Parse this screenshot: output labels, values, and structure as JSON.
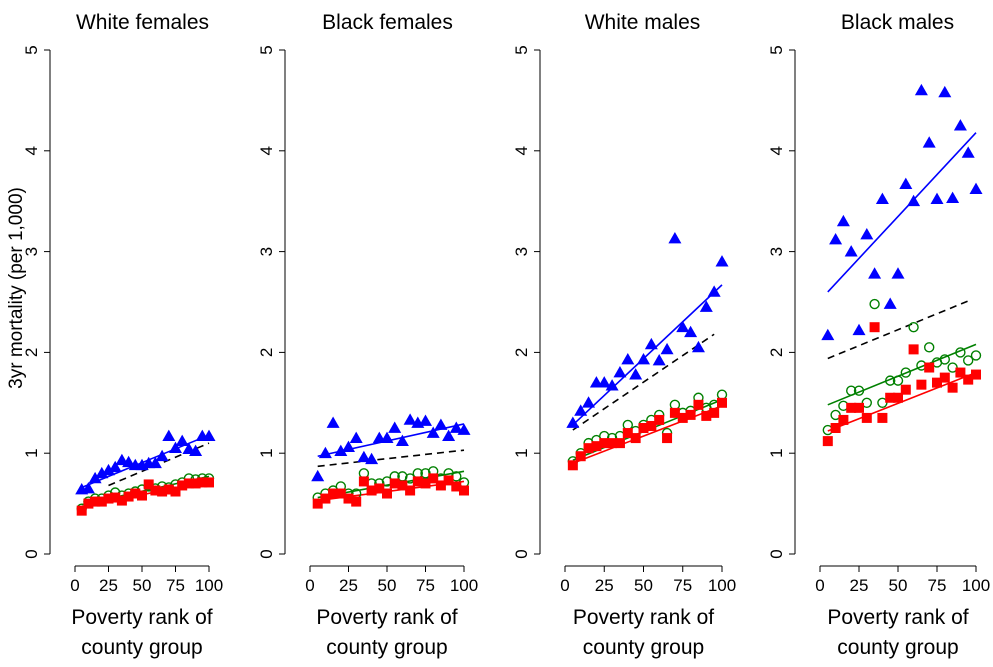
{
  "figure": {
    "ylabel": "3yr mortality (per 1,000)",
    "xlabel_line1": "Poverty rank of",
    "xlabel_line2": "county group"
  },
  "colors": {
    "blue": "#0000ff",
    "green": "#008000",
    "red": "#ff0000",
    "black": "#000000"
  },
  "chart_data": [
    {
      "type": "scatter",
      "title": "White females",
      "xlim": [
        0,
        100
      ],
      "ylim": [
        0,
        5
      ],
      "xticks": [
        0,
        25,
        50,
        75,
        100
      ],
      "yticks": [
        0,
        1,
        2,
        3,
        4,
        5
      ],
      "series": [
        {
          "marker": "triangle",
          "color": "blue",
          "x": [
            5,
            10,
            15,
            20,
            25,
            30,
            35,
            40,
            45,
            50,
            55,
            60,
            65,
            70,
            75,
            80,
            85,
            90,
            95,
            100
          ],
          "y": [
            0.64,
            0.65,
            0.75,
            0.8,
            0.83,
            0.86,
            0.93,
            0.91,
            0.88,
            0.88,
            0.9,
            0.9,
            0.97,
            1.17,
            1.05,
            1.12,
            1.04,
            1.02,
            1.17,
            1.17
          ]
        },
        {
          "marker": "hollow-circle",
          "color": "green",
          "x": [
            5,
            10,
            15,
            20,
            25,
            30,
            35,
            40,
            45,
            50,
            55,
            60,
            65,
            70,
            75,
            80,
            85,
            90,
            95,
            100
          ],
          "y": [
            0.45,
            0.52,
            0.55,
            0.55,
            0.58,
            0.61,
            0.58,
            0.6,
            0.62,
            0.64,
            0.67,
            0.65,
            0.67,
            0.66,
            0.69,
            0.71,
            0.75,
            0.74,
            0.75,
            0.75
          ]
        },
        {
          "marker": "filled-square",
          "color": "red",
          "x": [
            5,
            10,
            15,
            20,
            25,
            30,
            35,
            40,
            45,
            50,
            55,
            60,
            65,
            70,
            75,
            80,
            85,
            90,
            95,
            100
          ],
          "y": [
            0.43,
            0.5,
            0.52,
            0.52,
            0.55,
            0.56,
            0.53,
            0.57,
            0.6,
            0.58,
            0.69,
            0.63,
            0.62,
            0.64,
            0.62,
            0.68,
            0.7,
            0.7,
            0.71,
            0.71
          ]
        }
      ],
      "fit_lines": [
        {
          "color": "blue",
          "style": "solid",
          "x": [
            5,
            100
          ],
          "y": [
            0.66,
            1.18
          ]
        },
        {
          "color": "black",
          "style": "dashed",
          "x": [
            25,
            100
          ],
          "y": [
            0.68,
            1.1
          ]
        },
        {
          "color": "green",
          "style": "solid",
          "x": [
            5,
            100
          ],
          "y": [
            0.49,
            0.77
          ]
        },
        {
          "color": "red",
          "style": "solid",
          "x": [
            5,
            100
          ],
          "y": [
            0.47,
            0.72
          ]
        }
      ]
    },
    {
      "type": "scatter",
      "title": "Black females",
      "xlim": [
        0,
        100
      ],
      "ylim": [
        0,
        5
      ],
      "xticks": [
        0,
        25,
        50,
        75,
        100
      ],
      "yticks": [
        0,
        1,
        2,
        3,
        4,
        5
      ],
      "series": [
        {
          "marker": "triangle",
          "color": "blue",
          "x": [
            5,
            10,
            15,
            20,
            25,
            30,
            35,
            40,
            45,
            50,
            55,
            60,
            65,
            70,
            75,
            80,
            85,
            90,
            95,
            100
          ],
          "y": [
            0.77,
            1.0,
            1.3,
            1.02,
            1.06,
            1.15,
            0.96,
            0.94,
            1.15,
            1.15,
            1.25,
            1.12,
            1.33,
            1.3,
            1.32,
            1.2,
            1.28,
            1.17,
            1.25,
            1.23
          ]
        },
        {
          "marker": "hollow-circle",
          "color": "green",
          "x": [
            5,
            10,
            15,
            20,
            25,
            30,
            35,
            40,
            45,
            50,
            55,
            60,
            65,
            70,
            75,
            80,
            85,
            90,
            95,
            100
          ],
          "y": [
            0.56,
            0.6,
            0.63,
            0.67,
            0.6,
            0.6,
            0.8,
            0.7,
            0.7,
            0.72,
            0.77,
            0.77,
            0.75,
            0.8,
            0.8,
            0.82,
            0.75,
            0.8,
            0.77,
            0.71
          ]
        },
        {
          "marker": "filled-square",
          "color": "red",
          "x": [
            5,
            10,
            15,
            20,
            25,
            30,
            35,
            40,
            45,
            50,
            55,
            60,
            65,
            70,
            75,
            80,
            85,
            90,
            95,
            100
          ],
          "y": [
            0.5,
            0.55,
            0.6,
            0.6,
            0.55,
            0.52,
            0.72,
            0.63,
            0.65,
            0.6,
            0.7,
            0.68,
            0.63,
            0.72,
            0.7,
            0.75,
            0.68,
            0.73,
            0.67,
            0.63
          ]
        }
      ],
      "fit_lines": [
        {
          "color": "blue",
          "style": "solid",
          "x": [
            5,
            100
          ],
          "y": [
            0.97,
            1.29
          ]
        },
        {
          "color": "black",
          "style": "dashed",
          "x": [
            5,
            100
          ],
          "y": [
            0.87,
            1.03
          ]
        },
        {
          "color": "green",
          "style": "solid",
          "x": [
            5,
            100
          ],
          "y": [
            0.56,
            0.82
          ]
        },
        {
          "color": "red",
          "style": "solid",
          "x": [
            5,
            100
          ],
          "y": [
            0.53,
            0.72
          ]
        }
      ]
    },
    {
      "type": "scatter",
      "title": "White males",
      "xlim": [
        0,
        100
      ],
      "ylim": [
        0,
        5
      ],
      "xticks": [
        0,
        25,
        50,
        75,
        100
      ],
      "yticks": [
        0,
        1,
        2,
        3,
        4,
        5
      ],
      "series": [
        {
          "marker": "triangle",
          "color": "blue",
          "x": [
            5,
            10,
            15,
            20,
            25,
            30,
            35,
            40,
            45,
            50,
            55,
            60,
            65,
            70,
            75,
            80,
            85,
            90,
            95,
            100
          ],
          "y": [
            1.3,
            1.42,
            1.5,
            1.7,
            1.7,
            1.67,
            1.8,
            1.93,
            1.78,
            1.93,
            2.08,
            1.92,
            2.03,
            3.13,
            2.25,
            2.2,
            2.05,
            2.45,
            2.6,
            2.9
          ]
        },
        {
          "marker": "hollow-circle",
          "color": "green",
          "x": [
            5,
            10,
            15,
            20,
            25,
            30,
            35,
            40,
            45,
            50,
            55,
            60,
            65,
            70,
            75,
            80,
            85,
            90,
            95,
            100
          ],
          "y": [
            0.92,
            1.0,
            1.1,
            1.13,
            1.17,
            1.15,
            1.17,
            1.28,
            1.22,
            1.28,
            1.33,
            1.38,
            1.2,
            1.48,
            1.4,
            1.42,
            1.55,
            1.45,
            1.48,
            1.58
          ]
        },
        {
          "marker": "filled-square",
          "color": "red",
          "x": [
            5,
            10,
            15,
            20,
            25,
            30,
            35,
            40,
            45,
            50,
            55,
            60,
            65,
            70,
            75,
            80,
            85,
            90,
            95,
            100
          ],
          "y": [
            0.88,
            0.97,
            1.05,
            1.07,
            1.1,
            1.1,
            1.1,
            1.2,
            1.15,
            1.25,
            1.27,
            1.33,
            1.15,
            1.4,
            1.35,
            1.38,
            1.48,
            1.37,
            1.4,
            1.5
          ]
        }
      ],
      "fit_lines": [
        {
          "color": "blue",
          "style": "solid",
          "x": [
            5,
            100
          ],
          "y": [
            1.28,
            2.67
          ]
        },
        {
          "color": "black",
          "style": "dashed",
          "x": [
            5,
            95
          ],
          "y": [
            1.23,
            2.18
          ]
        },
        {
          "color": "green",
          "style": "solid",
          "x": [
            5,
            100
          ],
          "y": [
            0.93,
            1.53
          ]
        },
        {
          "color": "red",
          "style": "solid",
          "x": [
            5,
            100
          ],
          "y": [
            0.9,
            1.47
          ]
        }
      ]
    },
    {
      "type": "scatter",
      "title": "Black males",
      "xlim": [
        0,
        100
      ],
      "ylim": [
        0,
        5
      ],
      "xticks": [
        0,
        25,
        50,
        75,
        100
      ],
      "yticks": [
        0,
        1,
        2,
        3,
        4,
        5
      ],
      "series": [
        {
          "marker": "triangle",
          "color": "blue",
          "x": [
            5,
            10,
            15,
            20,
            25,
            30,
            35,
            40,
            45,
            50,
            55,
            60,
            65,
            70,
            75,
            80,
            85,
            90,
            95,
            100
          ],
          "y": [
            2.17,
            3.12,
            3.3,
            3.0,
            2.22,
            3.17,
            2.78,
            3.52,
            2.48,
            2.78,
            3.67,
            3.5,
            4.6,
            4.08,
            3.52,
            4.58,
            3.53,
            4.25,
            3.98,
            3.62
          ]
        },
        {
          "marker": "hollow-circle",
          "color": "green",
          "x": [
            5,
            10,
            15,
            20,
            25,
            30,
            35,
            40,
            45,
            50,
            55,
            60,
            65,
            70,
            75,
            80,
            85,
            90,
            95,
            100
          ],
          "y": [
            1.23,
            1.38,
            1.47,
            1.62,
            1.62,
            1.5,
            2.48,
            1.5,
            1.72,
            1.72,
            1.8,
            2.25,
            1.87,
            2.05,
            1.9,
            1.93,
            1.85,
            2.0,
            1.92,
            1.97
          ]
        },
        {
          "marker": "filled-square",
          "color": "red",
          "x": [
            5,
            10,
            15,
            20,
            25,
            30,
            35,
            40,
            45,
            50,
            55,
            60,
            65,
            70,
            75,
            80,
            85,
            90,
            95,
            100
          ],
          "y": [
            1.12,
            1.25,
            1.33,
            1.45,
            1.45,
            1.35,
            2.25,
            1.35,
            1.55,
            1.55,
            1.63,
            2.03,
            1.68,
            1.85,
            1.7,
            1.75,
            1.65,
            1.8,
            1.73,
            1.78
          ]
        }
      ],
      "fit_lines": [
        {
          "color": "blue",
          "style": "solid",
          "x": [
            5,
            100
          ],
          "y": [
            2.6,
            4.18
          ]
        },
        {
          "color": "black",
          "style": "dashed",
          "x": [
            5,
            95
          ],
          "y": [
            1.94,
            2.51
          ]
        },
        {
          "color": "green",
          "style": "solid",
          "x": [
            5,
            100
          ],
          "y": [
            1.48,
            2.08
          ]
        },
        {
          "color": "red",
          "style": "solid",
          "x": [
            5,
            100
          ],
          "y": [
            1.22,
            1.8
          ]
        }
      ]
    }
  ]
}
